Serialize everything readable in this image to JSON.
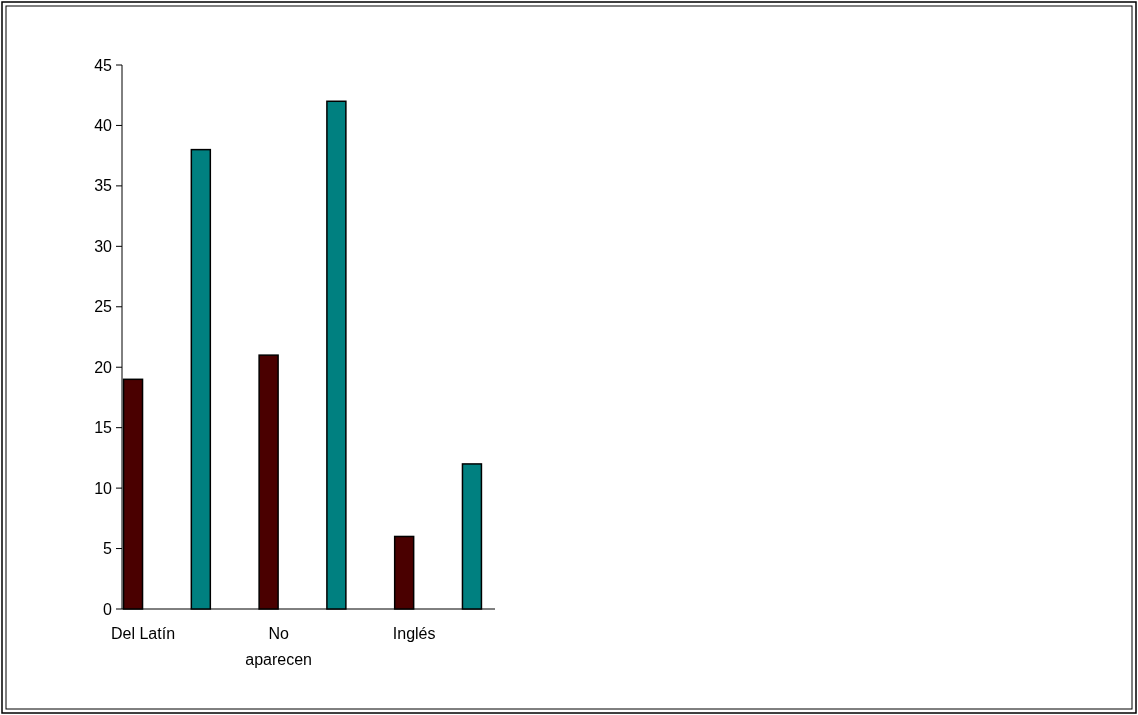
{
  "chart_data": {
    "type": "bar",
    "categories": [
      "Del Latín",
      null,
      "No aparecen",
      null,
      "Inglés",
      null
    ],
    "values": [
      19,
      38,
      21,
      42,
      6,
      12
    ],
    "colors": [
      "#4a0000",
      "#008080",
      "#4a0000",
      "#008080",
      "#4a0000",
      "#008080"
    ],
    "ylim": [
      0,
      45
    ],
    "yticks": [
      0,
      5,
      10,
      15,
      20,
      25,
      30,
      35,
      40,
      45
    ]
  }
}
